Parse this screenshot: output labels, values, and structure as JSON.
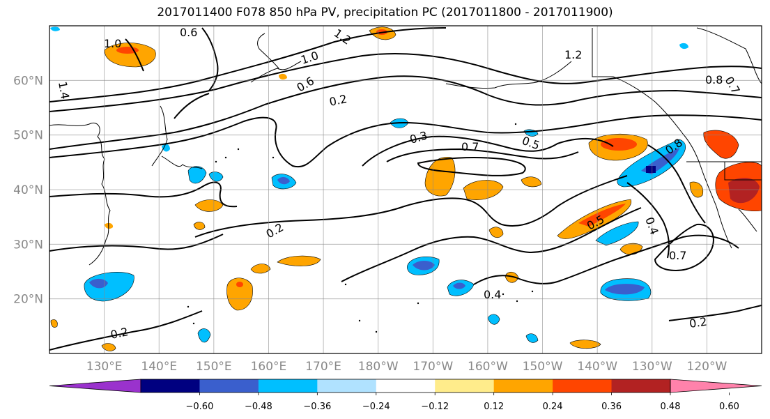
{
  "title": "2017011400 F078 850 hPa PV, precipitation PC (2017011800 - 2017011900)",
  "map": {
    "lat_labels": [
      "60°N",
      "50°N",
      "40°N",
      "30°N",
      "20°N"
    ],
    "lat_values": [
      60,
      50,
      40,
      30,
      20
    ],
    "lon_labels": [
      "130°E",
      "140°E",
      "150°E",
      "160°E",
      "170°E",
      "180°W",
      "170°W",
      "160°W",
      "150°W",
      "140°W",
      "130°W",
      "120°W"
    ],
    "lon_values": [
      130,
      140,
      150,
      160,
      170,
      180,
      190,
      200,
      210,
      220,
      230,
      240
    ],
    "lon_range": [
      120,
      250
    ],
    "lat_range": [
      10,
      70
    ],
    "grid": true,
    "contour_labels": [
      "0.6",
      "1.0",
      "1.4",
      "1.0",
      "1.2",
      "1.2",
      "0.6",
      "0.2",
      "0.3",
      "0.7",
      "0.5",
      "0.8",
      "0.7",
      "0.2",
      "0.2",
      "0.4",
      "0.5",
      "0.4",
      "0.7",
      "0.2",
      "0.8"
    ]
  },
  "colorbar": {
    "tick_labels": [
      "−0.60",
      "−0.48",
      "−0.36",
      "−0.24",
      "−0.12",
      "0.12",
      "0.24",
      "0.36",
      "0.48",
      "0.60"
    ],
    "colors": [
      "#9a32cd",
      "#000080",
      "#3a5fcd",
      "#00bfff",
      "#b0e2ff",
      "#ffffff",
      "#ffec8b",
      "#ffa500",
      "#ff4500",
      "#b22222",
      "#ff82ab"
    ]
  }
}
